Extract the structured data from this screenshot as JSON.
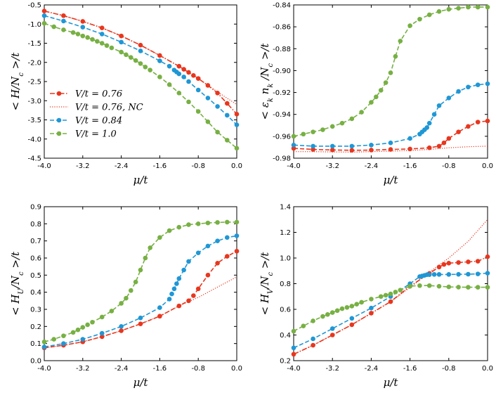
{
  "colors": {
    "red": "#e8361e",
    "blue": "#1f97d5",
    "green": "#77b043"
  },
  "chart_data": [
    {
      "type": "line",
      "id": "p1",
      "ylabel": "< H/N_c >/t",
      "xlabel": "μ/t",
      "xlim": [
        -4.0,
        0.0
      ],
      "ylim": [
        -4.5,
        -0.5
      ],
      "xticks": [
        -4.0,
        -3.2,
        -2.4,
        -1.6,
        -0.8,
        0.0
      ],
      "xtick_labels": [
        "-4.0",
        "-3.2",
        "-2.4",
        "-1.6",
        "-0.8",
        "0.0"
      ],
      "yticks": [
        -4.5,
        -4.0,
        -3.5,
        -3.0,
        -2.5,
        -2.0,
        -1.5,
        -1.0,
        -0.5
      ],
      "ytick_labels": [
        "-4.5",
        "-4.0",
        "-3.5",
        "-3.0",
        "-2.5",
        "-2.0",
        "-1.5",
        "-1.0",
        "-0.5"
      ],
      "legend": {
        "position": "lower-left",
        "entries": [
          "V/t = 0.76",
          "V/t = 0.76, NC",
          "V/t = 0.84",
          "V/t = 1.0"
        ]
      },
      "series": [
        {
          "name": "V/t = 0.76",
          "color": "red",
          "style": "dashdot",
          "markers": true,
          "x": [
            -4.0,
            -3.6,
            -3.2,
            -2.8,
            -2.4,
            -2.0,
            -1.6,
            -1.2,
            -1.1,
            -1.0,
            -0.9,
            -0.8,
            -0.6,
            -0.4,
            -0.2,
            0.0
          ],
          "y": [
            -0.66,
            -0.78,
            -0.93,
            -1.1,
            -1.31,
            -1.55,
            -1.82,
            -2.1,
            -2.18,
            -2.26,
            -2.34,
            -2.42,
            -2.6,
            -2.8,
            -3.07,
            -3.35
          ]
        },
        {
          "name": "V/t = 0.76, NC",
          "color": "red",
          "style": "dotted",
          "markers": false,
          "x": [
            -4.0,
            -3.6,
            -3.2,
            -2.8,
            -2.4,
            -2.0,
            -1.6,
            -1.2,
            -0.8,
            -0.4,
            0.0
          ],
          "y": [
            -0.66,
            -0.78,
            -0.93,
            -1.1,
            -1.31,
            -1.55,
            -1.82,
            -2.1,
            -2.42,
            -2.77,
            -3.1
          ]
        },
        {
          "name": "V/t = 0.84",
          "color": "blue",
          "style": "dashed",
          "markers": true,
          "x": [
            -4.0,
            -3.6,
            -3.2,
            -2.8,
            -2.4,
            -2.0,
            -1.6,
            -1.4,
            -1.3,
            -1.25,
            -1.2,
            -1.1,
            -1.0,
            -0.8,
            -0.6,
            -0.4,
            -0.2,
            0.0
          ],
          "y": [
            -0.78,
            -0.92,
            -1.08,
            -1.26,
            -1.47,
            -1.7,
            -1.96,
            -2.1,
            -2.2,
            -2.25,
            -2.3,
            -2.38,
            -2.5,
            -2.72,
            -2.93,
            -3.15,
            -3.38,
            -3.63
          ]
        },
        {
          "name": "V/t = 1.0",
          "color": "green",
          "style": "dashed",
          "markers": true,
          "x": [
            -4.0,
            -3.8,
            -3.6,
            -3.4,
            -3.3,
            -3.2,
            -3.1,
            -3.0,
            -2.9,
            -2.8,
            -2.7,
            -2.6,
            -2.4,
            -2.3,
            -2.2,
            -2.1,
            -2.0,
            -1.9,
            -1.8,
            -1.6,
            -1.4,
            -1.2,
            -1.0,
            -0.8,
            -0.6,
            -0.4,
            -0.2,
            0.0
          ],
          "y": [
            -0.98,
            -1.07,
            -1.15,
            -1.22,
            -1.26,
            -1.31,
            -1.35,
            -1.4,
            -1.45,
            -1.5,
            -1.56,
            -1.62,
            -1.73,
            -1.8,
            -1.87,
            -1.95,
            -2.03,
            -2.12,
            -2.2,
            -2.38,
            -2.58,
            -2.8,
            -3.03,
            -3.28,
            -3.55,
            -3.82,
            -4.03,
            -4.24
          ]
        }
      ]
    },
    {
      "type": "line",
      "id": "p2",
      "ylabel": "< ε_k n_k /N_c >/t",
      "xlabel": "μ/t",
      "xlim": [
        -4.0,
        0.0
      ],
      "ylim": [
        -0.98,
        -0.84
      ],
      "xticks": [
        -4.0,
        -3.2,
        -2.4,
        -1.6,
        -0.8,
        0.0
      ],
      "xtick_labels": [
        "-4.0",
        "-3.2",
        "-2.4",
        "-1.6",
        "-0.8",
        "0.0"
      ],
      "yticks": [
        -0.98,
        -0.96,
        -0.94,
        -0.92,
        -0.9,
        -0.88,
        -0.86,
        -0.84
      ],
      "ytick_labels": [
        "-0.98",
        "-0.96",
        "-0.94",
        "-0.92",
        "-0.90",
        "-0.88",
        "-0.86",
        "-0.84"
      ],
      "series": [
        {
          "name": "V/t = 0.76",
          "color": "red",
          "style": "dashed",
          "markers": true,
          "x": [
            -4.0,
            -3.6,
            -3.2,
            -2.8,
            -2.4,
            -2.0,
            -1.6,
            -1.2,
            -1.0,
            -0.9,
            -0.8,
            -0.6,
            -0.4,
            -0.2,
            0.0
          ],
          "y": [
            -0.971,
            -0.972,
            -0.9725,
            -0.9728,
            -0.9726,
            -0.972,
            -0.9716,
            -0.9705,
            -0.969,
            -0.966,
            -0.962,
            -0.956,
            -0.951,
            -0.947,
            -0.946
          ]
        },
        {
          "name": "V/t = 0.76, NC",
          "color": "red",
          "style": "dotted",
          "markers": false,
          "x": [
            -4.0,
            -3.6,
            -3.2,
            -2.8,
            -2.4,
            -2.0,
            -1.6,
            -1.2,
            -0.8,
            -0.4,
            0.0
          ],
          "y": [
            -0.974,
            -0.974,
            -0.9743,
            -0.9745,
            -0.974,
            -0.9735,
            -0.973,
            -0.972,
            -0.9705,
            -0.9695,
            -0.969
          ]
        },
        {
          "name": "V/t = 0.84",
          "color": "blue",
          "style": "dashed",
          "markers": true,
          "x": [
            -4.0,
            -3.6,
            -3.2,
            -2.8,
            -2.4,
            -2.0,
            -1.6,
            -1.4,
            -1.35,
            -1.3,
            -1.25,
            -1.2,
            -1.1,
            -1.0,
            -0.8,
            -0.6,
            -0.4,
            -0.2,
            0.0
          ],
          "y": [
            -0.968,
            -0.969,
            -0.969,
            -0.969,
            -0.968,
            -0.966,
            -0.962,
            -0.958,
            -0.956,
            -0.954,
            -0.952,
            -0.948,
            -0.94,
            -0.932,
            -0.925,
            -0.919,
            -0.915,
            -0.913,
            -0.912
          ]
        },
        {
          "name": "V/t = 1.0",
          "color": "green",
          "style": "dashed",
          "markers": true,
          "x": [
            -4.0,
            -3.8,
            -3.6,
            -3.4,
            -3.2,
            -3.0,
            -2.8,
            -2.6,
            -2.4,
            -2.3,
            -2.2,
            -2.1,
            -2.0,
            -1.9,
            -1.8,
            -1.6,
            -1.4,
            -1.2,
            -1.0,
            -0.8,
            -0.6,
            -0.4,
            -0.2,
            0.0
          ],
          "y": [
            -0.96,
            -0.958,
            -0.956,
            -0.954,
            -0.951,
            -0.948,
            -0.944,
            -0.938,
            -0.929,
            -0.924,
            -0.918,
            -0.911,
            -0.902,
            -0.887,
            -0.873,
            -0.859,
            -0.853,
            -0.849,
            -0.846,
            -0.844,
            -0.843,
            -0.842,
            -0.842,
            -0.842
          ]
        }
      ]
    },
    {
      "type": "line",
      "id": "p3",
      "ylabel": "< H_U/N_c >/t",
      "xlabel": "μ/t",
      "xlim": [
        -4.0,
        0.0
      ],
      "ylim": [
        0.0,
        0.9
      ],
      "xticks": [
        -4.0,
        -3.2,
        -2.4,
        -1.6,
        -0.8,
        0.0
      ],
      "xtick_labels": [
        "-4.0",
        "-3.2",
        "-2.4",
        "-1.6",
        "-0.8",
        "0.0"
      ],
      "yticks": [
        0.0,
        0.1,
        0.2,
        0.3,
        0.4,
        0.5,
        0.6,
        0.7,
        0.8,
        0.9
      ],
      "ytick_labels": [
        "0.0",
        "0.1",
        "0.2",
        "0.3",
        "0.4",
        "0.5",
        "0.6",
        "0.7",
        "0.8",
        "0.9"
      ],
      "series": [
        {
          "name": "V/t = 0.76",
          "color": "red",
          "style": "dashed",
          "markers": true,
          "x": [
            -4.0,
            -3.6,
            -3.2,
            -2.8,
            -2.4,
            -2.0,
            -1.6,
            -1.2,
            -1.0,
            -0.9,
            -0.8,
            -0.6,
            -0.4,
            -0.2,
            0.0
          ],
          "y": [
            0.075,
            0.09,
            0.11,
            0.14,
            0.175,
            0.215,
            0.26,
            0.32,
            0.35,
            0.38,
            0.42,
            0.5,
            0.57,
            0.61,
            0.64
          ]
        },
        {
          "name": "V/t = 0.76, NC",
          "color": "red",
          "style": "dotted",
          "markers": false,
          "x": [
            -4.0,
            -3.6,
            -3.2,
            -2.8,
            -2.4,
            -2.0,
            -1.6,
            -1.2,
            -0.8,
            -0.4,
            0.0
          ],
          "y": [
            0.075,
            0.09,
            0.11,
            0.14,
            0.175,
            0.215,
            0.26,
            0.32,
            0.37,
            0.43,
            0.49
          ]
        },
        {
          "name": "V/t = 0.84",
          "color": "blue",
          "style": "dashed",
          "markers": true,
          "x": [
            -4.0,
            -3.6,
            -3.2,
            -2.8,
            -2.4,
            -2.0,
            -1.6,
            -1.4,
            -1.35,
            -1.3,
            -1.25,
            -1.2,
            -1.1,
            -1.0,
            -0.8,
            -0.6,
            -0.4,
            -0.2,
            0.0
          ],
          "y": [
            0.08,
            0.1,
            0.125,
            0.16,
            0.2,
            0.25,
            0.31,
            0.36,
            0.39,
            0.42,
            0.45,
            0.48,
            0.53,
            0.58,
            0.63,
            0.67,
            0.7,
            0.72,
            0.73
          ]
        },
        {
          "name": "V/t = 1.0",
          "color": "green",
          "style": "dashed",
          "markers": true,
          "x": [
            -4.0,
            -3.8,
            -3.6,
            -3.4,
            -3.3,
            -3.2,
            -3.1,
            -3.0,
            -2.8,
            -2.6,
            -2.4,
            -2.3,
            -2.2,
            -2.1,
            -2.0,
            -1.9,
            -1.8,
            -1.6,
            -1.4,
            -1.2,
            -1.0,
            -0.8,
            -0.6,
            -0.4,
            -0.2,
            0.0
          ],
          "y": [
            0.11,
            0.125,
            0.145,
            0.165,
            0.18,
            0.195,
            0.21,
            0.225,
            0.255,
            0.29,
            0.335,
            0.365,
            0.41,
            0.46,
            0.53,
            0.6,
            0.66,
            0.72,
            0.76,
            0.78,
            0.795,
            0.8,
            0.805,
            0.808,
            0.81,
            0.81
          ]
        }
      ]
    },
    {
      "type": "line",
      "id": "p4",
      "ylabel": "< H_V/N_c >/t",
      "xlabel": "μ/t",
      "xlim": [
        -4.0,
        0.0
      ],
      "ylim": [
        0.2,
        1.4
      ],
      "xticks": [
        -4.0,
        -3.2,
        -2.4,
        -1.6,
        -0.8,
        0.0
      ],
      "xtick_labels": [
        "-4.0",
        "-3.2",
        "-2.4",
        "-1.6",
        "-0.8",
        "0.0"
      ],
      "yticks": [
        0.2,
        0.4,
        0.6,
        0.8,
        1.0,
        1.2,
        1.4
      ],
      "ytick_labels": [
        "0.2",
        "0.4",
        "0.6",
        "0.8",
        "1.0",
        "1.2",
        "1.4"
      ],
      "series": [
        {
          "name": "V/t = 0.76",
          "color": "red",
          "style": "dashdot",
          "markers": true,
          "x": [
            -4.0,
            -3.6,
            -3.2,
            -2.8,
            -2.4,
            -2.0,
            -1.6,
            -1.2,
            -1.0,
            -0.9,
            -0.8,
            -0.6,
            -0.4,
            -0.2,
            0.0
          ],
          "y": [
            0.25,
            0.32,
            0.4,
            0.48,
            0.57,
            0.66,
            0.78,
            0.88,
            0.93,
            0.95,
            0.96,
            0.965,
            0.97,
            0.975,
            1.01
          ]
        },
        {
          "name": "V/t = 0.76, NC",
          "color": "red",
          "style": "dotted",
          "markers": false,
          "x": [
            -4.0,
            -3.6,
            -3.2,
            -2.8,
            -2.4,
            -2.0,
            -1.6,
            -1.2,
            -0.8,
            -0.4,
            0.0
          ],
          "y": [
            0.25,
            0.32,
            0.4,
            0.48,
            0.57,
            0.66,
            0.77,
            0.89,
            1.0,
            1.13,
            1.3
          ]
        },
        {
          "name": "V/t = 0.84",
          "color": "blue",
          "style": "dashed",
          "markers": true,
          "x": [
            -4.0,
            -3.6,
            -3.2,
            -2.8,
            -2.4,
            -2.0,
            -1.6,
            -1.4,
            -1.35,
            -1.3,
            -1.25,
            -1.2,
            -1.1,
            -1.0,
            -0.8,
            -0.6,
            -0.4,
            -0.2,
            0.0
          ],
          "y": [
            0.3,
            0.37,
            0.45,
            0.53,
            0.61,
            0.7,
            0.8,
            0.855,
            0.86,
            0.865,
            0.87,
            0.87,
            0.872,
            0.872,
            0.872,
            0.873,
            0.874,
            0.876,
            0.882
          ]
        },
        {
          "name": "V/t = 1.0",
          "color": "green",
          "style": "dashed",
          "markers": true,
          "x": [
            -4.0,
            -3.8,
            -3.6,
            -3.4,
            -3.3,
            -3.2,
            -3.1,
            -3.0,
            -2.9,
            -2.8,
            -2.7,
            -2.6,
            -2.4,
            -2.2,
            -2.1,
            -2.0,
            -1.9,
            -1.8,
            -1.6,
            -1.4,
            -1.2,
            -1.0,
            -0.8,
            -0.6,
            -0.4,
            -0.2,
            0.0
          ],
          "y": [
            0.43,
            0.47,
            0.51,
            0.545,
            0.56,
            0.575,
            0.59,
            0.605,
            0.615,
            0.625,
            0.64,
            0.655,
            0.68,
            0.7,
            0.71,
            0.72,
            0.735,
            0.75,
            0.78,
            0.785,
            0.785,
            0.78,
            0.775,
            0.773,
            0.772,
            0.772,
            0.772
          ]
        }
      ]
    }
  ]
}
